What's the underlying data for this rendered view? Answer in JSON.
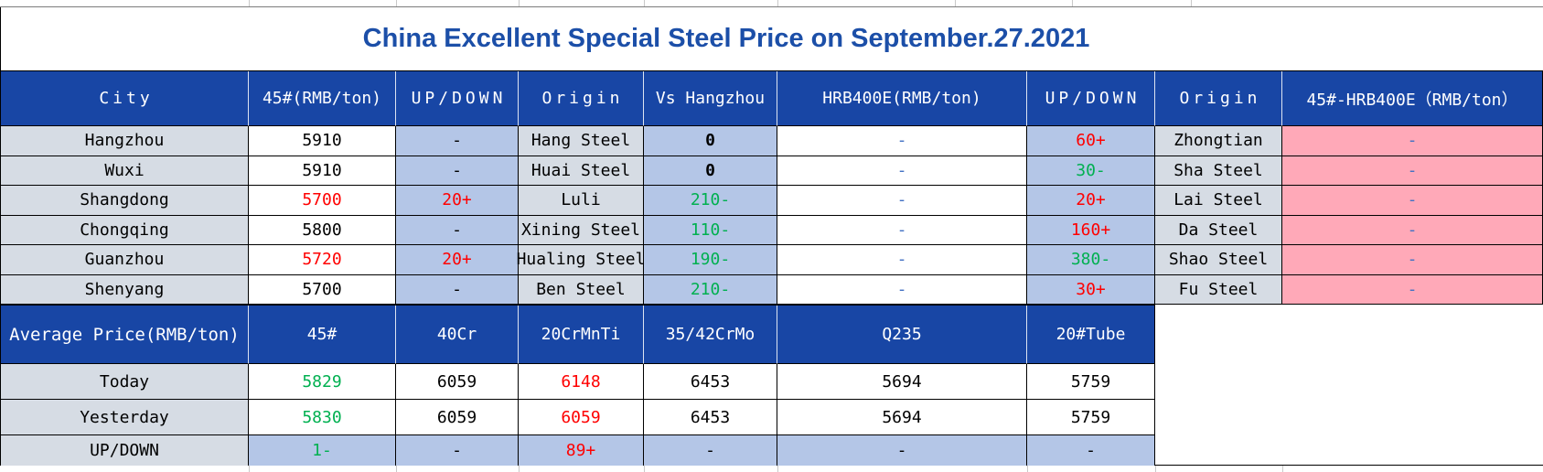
{
  "title": "China Excellent Special Steel Price on September.27.2021",
  "colors": {
    "header_bg": "#1846A5",
    "title_text": "#1C4FA8",
    "label_gray": "#D6DCE4",
    "light_blue": "#B4C6E7",
    "pink": "#FFA9B8",
    "red": "#FF0000",
    "green": "#00B050",
    "blue": "#4472C4",
    "black": "#000000"
  },
  "price_table": {
    "headers": [
      "City",
      "45#(RMB/ton)",
      "UP/DOWN",
      "Origin",
      "Vs Hangzhou",
      "HRB400E(RMB/ton)",
      "UP/DOWN",
      "Origin",
      "45#-HRB400E（RMB/ton）"
    ],
    "rows": [
      {
        "city": "Hangzhou",
        "cells": [
          {
            "t": "5910",
            "c": "black"
          },
          {
            "t": "-",
            "c": "black"
          },
          {
            "t": "Hang Steel",
            "c": "black"
          },
          {
            "t": "0",
            "c": "black",
            "bold": true
          },
          {
            "t": "-",
            "c": "blue"
          },
          {
            "t": "60+",
            "c": "red"
          },
          {
            "t": "Zhongtian",
            "c": "black"
          },
          {
            "t": "-",
            "c": "blue"
          }
        ]
      },
      {
        "city": "Wuxi",
        "cells": [
          {
            "t": "5910",
            "c": "black"
          },
          {
            "t": "-",
            "c": "black"
          },
          {
            "t": "Huai Steel",
            "c": "black"
          },
          {
            "t": "0",
            "c": "black",
            "bold": true
          },
          {
            "t": "-",
            "c": "blue"
          },
          {
            "t": "30-",
            "c": "green"
          },
          {
            "t": "Sha Steel",
            "c": "black"
          },
          {
            "t": "-",
            "c": "blue"
          }
        ]
      },
      {
        "city": "Shangdong",
        "cells": [
          {
            "t": "5700",
            "c": "red"
          },
          {
            "t": "20+",
            "c": "red"
          },
          {
            "t": "Luli",
            "c": "black"
          },
          {
            "t": "210-",
            "c": "green"
          },
          {
            "t": "-",
            "c": "blue"
          },
          {
            "t": "20+",
            "c": "red"
          },
          {
            "t": "Lai Steel",
            "c": "black"
          },
          {
            "t": "-",
            "c": "blue"
          }
        ]
      },
      {
        "city": "Chongqing",
        "cells": [
          {
            "t": "5800",
            "c": "black"
          },
          {
            "t": "-",
            "c": "black"
          },
          {
            "t": "Xining Steel",
            "c": "black"
          },
          {
            "t": "110-",
            "c": "green"
          },
          {
            "t": "-",
            "c": "blue"
          },
          {
            "t": "160+",
            "c": "red"
          },
          {
            "t": "Da Steel",
            "c": "black"
          },
          {
            "t": "-",
            "c": "blue"
          }
        ]
      },
      {
        "city": "Guanzhou",
        "cells": [
          {
            "t": "5720",
            "c": "red"
          },
          {
            "t": "20+",
            "c": "red"
          },
          {
            "t": "Hualing Steel",
            "c": "black"
          },
          {
            "t": "190-",
            "c": "green"
          },
          {
            "t": "-",
            "c": "blue"
          },
          {
            "t": "380-",
            "c": "green"
          },
          {
            "t": "Shao Steel",
            "c": "black"
          },
          {
            "t": "-",
            "c": "blue"
          }
        ]
      },
      {
        "city": "Shenyang",
        "cells": [
          {
            "t": "5700",
            "c": "black"
          },
          {
            "t": "-",
            "c": "black"
          },
          {
            "t": "Ben Steel",
            "c": "black"
          },
          {
            "t": "210-",
            "c": "green"
          },
          {
            "t": "-",
            "c": "blue"
          },
          {
            "t": "30+",
            "c": "red"
          },
          {
            "t": "Fu Steel",
            "c": "black"
          },
          {
            "t": "-",
            "c": "blue"
          }
        ]
      }
    ]
  },
  "average_table": {
    "headers": [
      "Average Price(RMB/ton)",
      "45#",
      "40Cr",
      "20CrMnTi",
      "35/42CrMo",
      "Q235",
      "20#Tube"
    ],
    "rows": [
      {
        "label": "Today",
        "highlight": false,
        "cells": [
          {
            "t": "5829",
            "c": "green"
          },
          {
            "t": "6059",
            "c": "black"
          },
          {
            "t": "6148",
            "c": "red"
          },
          {
            "t": "6453",
            "c": "black"
          },
          {
            "t": "5694",
            "c": "black"
          },
          {
            "t": "5759",
            "c": "black"
          }
        ]
      },
      {
        "label": "Yesterday",
        "highlight": false,
        "cells": [
          {
            "t": "5830",
            "c": "green"
          },
          {
            "t": "6059",
            "c": "black"
          },
          {
            "t": "6059",
            "c": "red"
          },
          {
            "t": "6453",
            "c": "black"
          },
          {
            "t": "5694",
            "c": "black"
          },
          {
            "t": "5759",
            "c": "black"
          }
        ]
      },
      {
        "label": "UP/DOWN",
        "highlight": true,
        "cells": [
          {
            "t": "1-",
            "c": "green"
          },
          {
            "t": "-",
            "c": "black"
          },
          {
            "t": "89+",
            "c": "red"
          },
          {
            "t": "-",
            "c": "black"
          },
          {
            "t": "-",
            "c": "black"
          },
          {
            "t": "-",
            "c": "black"
          }
        ]
      }
    ]
  }
}
